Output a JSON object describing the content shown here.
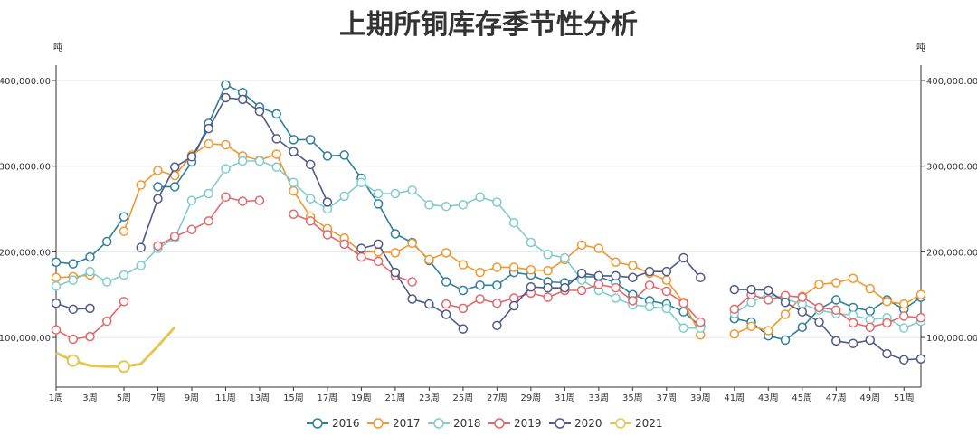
{
  "chart_data": {
    "type": "line",
    "title": "上期所铜库存季节性分析",
    "ylabel_left": "吨",
    "ylabel_right": "吨",
    "ylim": [
      42000,
      418000
    ],
    "y_ticks": [
      100000,
      200000,
      300000,
      400000
    ],
    "y_tick_labels": [
      "100,000.00",
      "200,000.00",
      "300,000.00",
      "400,000.00"
    ],
    "x_categories": [
      "1周",
      "2周",
      "3周",
      "4周",
      "5周",
      "6周",
      "7周",
      "8周",
      "9周",
      "10周",
      "11周",
      "12周",
      "13周",
      "14周",
      "15周",
      "16周",
      "17周",
      "18周",
      "19周",
      "20周",
      "21周",
      "22周",
      "23周",
      "24周",
      "25周",
      "26周",
      "27周",
      "28周",
      "29周",
      "30周",
      "31周",
      "32周",
      "33周",
      "34周",
      "35周",
      "36周",
      "37周",
      "38周",
      "39周",
      "40周",
      "41周",
      "42周",
      "43周",
      "44周",
      "45周",
      "46周",
      "47周",
      "48周",
      "49周",
      "50周",
      "51周",
      "52周"
    ],
    "x_tick_labels": [
      "1周",
      "3周",
      "5周",
      "7周",
      "9周",
      "11周",
      "13周",
      "15周",
      "17周",
      "19周",
      "21周",
      "23周",
      "25周",
      "27周",
      "29周",
      "31周",
      "33周",
      "35周",
      "37周",
      "39周",
      "41周",
      "43周",
      "45周",
      "47周",
      "49周",
      "51周"
    ],
    "legend_position": "bottom",
    "series": [
      {
        "name": "2016",
        "color": "#2f7f9e",
        "values": [
          188000,
          186000,
          194000,
          212000,
          241000,
          null,
          276000,
          276000,
          305000,
          350000,
          395000,
          386000,
          369000,
          361000,
          331000,
          331000,
          312000,
          313000,
          286000,
          256000,
          221000,
          211000,
          190000,
          165000,
          155000,
          161000,
          161000,
          176000,
          173000,
          165000,
          164000,
          171000,
          171000,
          164000,
          150000,
          143000,
          139000,
          130000,
          113000,
          null,
          122000,
          118000,
          102000,
          97000,
          112000,
          133000,
          144000,
          135000,
          131000,
          144000,
          133000,
          147000
        ]
      },
      {
        "name": "2017",
        "color": "#f2972f",
        "values": [
          170000,
          171000,
          173000,
          null,
          224000,
          278000,
          295000,
          289000,
          313000,
          326000,
          325000,
          312000,
          307000,
          314000,
          271000,
          241000,
          227000,
          216000,
          200000,
          200000,
          199000,
          210000,
          191000,
          199000,
          185000,
          176000,
          182000,
          182000,
          179000,
          178000,
          191000,
          208000,
          204000,
          188000,
          184000,
          175000,
          167000,
          141000,
          103000,
          null,
          104000,
          113000,
          108000,
          127000,
          148000,
          162000,
          164000,
          169000,
          157000,
          142000,
          139000,
          150000
        ]
      },
      {
        "name": "2018",
        "color": "#7ecccf",
        "values": [
          160000,
          167000,
          177000,
          165000,
          173000,
          184000,
          204000,
          216000,
          260000,
          268000,
          297000,
          306000,
          306000,
          299000,
          281000,
          262000,
          250000,
          265000,
          281000,
          268000,
          268000,
          272000,
          255000,
          253000,
          255000,
          264000,
          258000,
          234000,
          211000,
          197000,
          193000,
          167000,
          155000,
          146000,
          138000,
          136000,
          134000,
          111000,
          111000,
          null,
          128000,
          141000,
          151000,
          145000,
          139000,
          132000,
          128000,
          126000,
          121000,
          123000,
          111000,
          119000
        ]
      },
      {
        "name": "2019",
        "color": "#e3686a",
        "values": [
          109000,
          98000,
          101000,
          119000,
          142000,
          null,
          207000,
          218000,
          226000,
          236000,
          264000,
          259000,
          260000,
          null,
          244000,
          236000,
          220000,
          209000,
          194000,
          189000,
          172000,
          165000,
          null,
          139000,
          134000,
          145000,
          140000,
          146000,
          152000,
          147000,
          155000,
          155000,
          162000,
          158000,
          143000,
          161000,
          154000,
          140000,
          118000,
          null,
          133000,
          150000,
          144000,
          149000,
          147000,
          135000,
          132000,
          117000,
          112000,
          117000,
          125000,
          123000
        ]
      },
      {
        "name": "2020",
        "color": "#4f5a8c",
        "values": [
          140000,
          133000,
          134000,
          null,
          null,
          205000,
          262000,
          299000,
          311000,
          344000,
          380000,
          378000,
          364000,
          332000,
          317000,
          302000,
          258000,
          null,
          204000,
          209000,
          176000,
          145000,
          139000,
          127000,
          110000,
          null,
          114000,
          137000,
          159000,
          158000,
          158000,
          175000,
          172000,
          172000,
          170000,
          177000,
          177000,
          193000,
          170000,
          null,
          156000,
          156000,
          155000,
          141000,
          130000,
          118000,
          96000,
          93000,
          97000,
          81000,
          74000,
          75000
        ]
      },
      {
        "name": "2021",
        "color": "#e3c752",
        "values": [
          82000,
          73000,
          67000,
          66000,
          66000,
          69000,
          90000,
          112000
        ]
      }
    ]
  }
}
